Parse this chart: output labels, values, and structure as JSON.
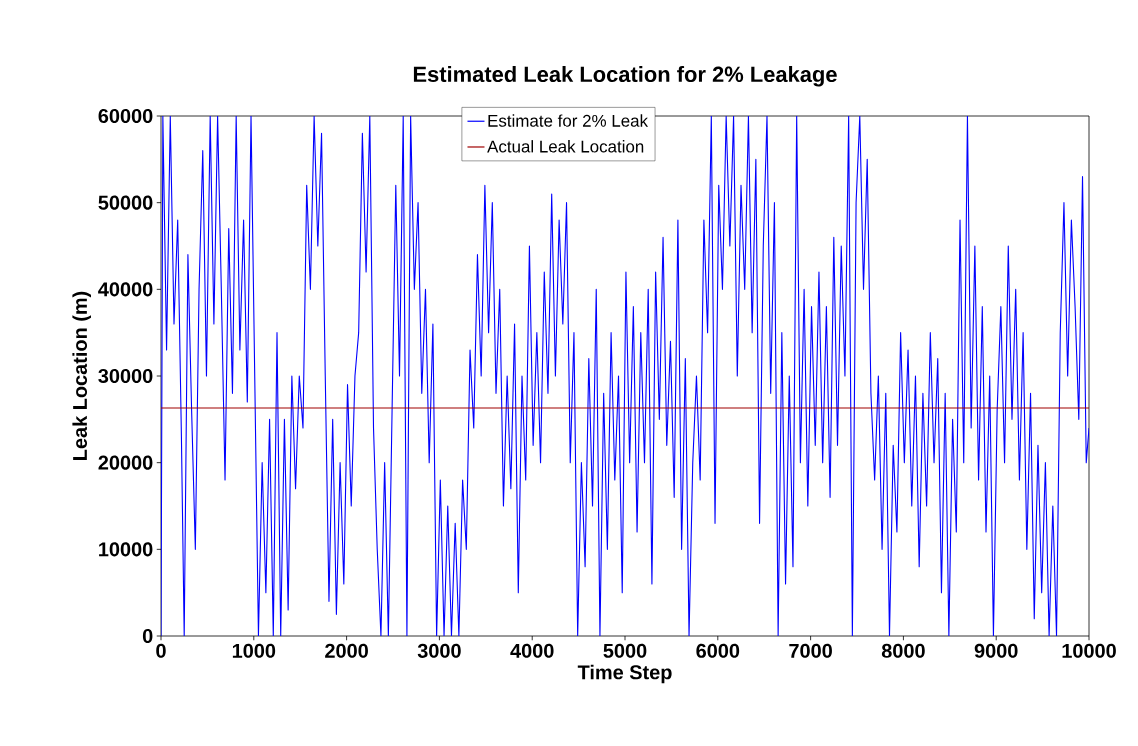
{
  "chart_data": {
    "type": "line",
    "title": "Estimated Leak Location for 2% Leakage",
    "xlabel": "Time Step",
    "ylabel": "Leak Location (m)",
    "xlim": [
      0,
      10000
    ],
    "ylim": [
      0,
      60000
    ],
    "xticks": [
      0,
      1000,
      2000,
      3000,
      4000,
      5000,
      6000,
      7000,
      8000,
      9000,
      10000
    ],
    "yticks": [
      0,
      10000,
      20000,
      30000,
      40000,
      50000,
      60000
    ],
    "legend": "top",
    "series": [
      {
        "name": "Estimate for 2% Leak",
        "color": "#0000ff",
        "x": [
          0,
          20,
          60,
          100,
          140,
          180,
          220,
          250,
          290,
          330,
          370,
          410,
          450,
          490,
          530,
          570,
          610,
          650,
          690,
          730,
          770,
          810,
          850,
          890,
          930,
          970,
          1010,
          1050,
          1090,
          1130,
          1170,
          1210,
          1250,
          1290,
          1330,
          1370,
          1410,
          1450,
          1490,
          1530,
          1570,
          1610,
          1650,
          1690,
          1730,
          1770,
          1810,
          1850,
          1890,
          1930,
          1970,
          2010,
          2050,
          2090,
          2130,
          2170,
          2210,
          2250,
          2290,
          2330,
          2370,
          2410,
          2450,
          2490,
          2530,
          2570,
          2610,
          2650,
          2690,
          2730,
          2770,
          2810,
          2850,
          2890,
          2930,
          2970,
          3010,
          3050,
          3090,
          3130,
          3170,
          3210,
          3250,
          3290,
          3330,
          3370,
          3410,
          3450,
          3490,
          3530,
          3570,
          3610,
          3650,
          3690,
          3730,
          3770,
          3810,
          3850,
          3890,
          3930,
          3970,
          4010,
          4050,
          4090,
          4130,
          4170,
          4210,
          4250,
          4290,
          4330,
          4370,
          4410,
          4450,
          4490,
          4530,
          4570,
          4610,
          4650,
          4690,
          4730,
          4770,
          4810,
          4850,
          4890,
          4930,
          4970,
          5010,
          5050,
          5090,
          5130,
          5170,
          5210,
          5250,
          5290,
          5330,
          5370,
          5410,
          5450,
          5490,
          5530,
          5570,
          5610,
          5650,
          5690,
          5730,
          5770,
          5810,
          5850,
          5890,
          5930,
          5970,
          6010,
          6050,
          6090,
          6130,
          6170,
          6210,
          6250,
          6290,
          6330,
          6370,
          6410,
          6450,
          6490,
          6530,
          6570,
          6610,
          6650,
          6690,
          6730,
          6770,
          6810,
          6850,
          6890,
          6930,
          6970,
          7010,
          7050,
          7090,
          7130,
          7170,
          7210,
          7250,
          7290,
          7330,
          7370,
          7410,
          7450,
          7490,
          7530,
          7570,
          7610,
          7650,
          7690,
          7730,
          7770,
          7810,
          7850,
          7890,
          7930,
          7970,
          8010,
          8050,
          8090,
          8130,
          8170,
          8210,
          8250,
          8290,
          8330,
          8370,
          8410,
          8450,
          8490,
          8530,
          8570,
          8610,
          8650,
          8690,
          8730,
          8770,
          8810,
          8850,
          8890,
          8930,
          8970,
          9010,
          9050,
          9090,
          9130,
          9170,
          9210,
          9250,
          9290,
          9330,
          9370,
          9410,
          9450,
          9490,
          9530,
          9570,
          9610,
          9650,
          9690,
          9730,
          9770,
          9810,
          9850,
          9890,
          9930,
          9970,
          10000
        ],
        "values": [
          0,
          60000,
          33000,
          60000,
          36000,
          48000,
          23000,
          0,
          44000,
          26000,
          10000,
          40000,
          56000,
          30000,
          60000,
          36000,
          60000,
          40000,
          18000,
          47000,
          28000,
          60000,
          33000,
          48000,
          27000,
          60000,
          30000,
          0,
          20000,
          5000,
          25000,
          0,
          35000,
          0,
          25000,
          3000,
          30000,
          17000,
          30000,
          24000,
          52000,
          40000,
          60000,
          45000,
          58000,
          30000,
          4000,
          25000,
          2500,
          20000,
          6000,
          29000,
          15000,
          30000,
          35000,
          58000,
          42000,
          60000,
          24000,
          10000,
          0,
          20000,
          0,
          26000,
          52000,
          30000,
          60000,
          0,
          60000,
          40000,
          50000,
          28000,
          40000,
          20000,
          36000,
          0,
          18000,
          0,
          15000,
          0,
          13000,
          0,
          18000,
          10000,
          33000,
          24000,
          44000,
          30000,
          52000,
          35000,
          50000,
          28000,
          40000,
          15000,
          30000,
          17000,
          36000,
          5000,
          30000,
          18000,
          45000,
          22000,
          35000,
          20000,
          42000,
          28000,
          51000,
          30000,
          48000,
          36000,
          50000,
          20000,
          35000,
          0,
          20000,
          8000,
          32000,
          15000,
          40000,
          0,
          28000,
          10000,
          35000,
          18000,
          30000,
          5000,
          42000,
          20000,
          38000,
          12000,
          35000,
          20000,
          40000,
          6000,
          42000,
          25000,
          46000,
          22000,
          34000,
          16000,
          48000,
          10000,
          32000,
          0,
          20000,
          30000,
          18000,
          48000,
          35000,
          60000,
          13000,
          52000,
          40000,
          60000,
          45000,
          60000,
          30000,
          52000,
          40000,
          60000,
          35000,
          55000,
          13000,
          45000,
          60000,
          28000,
          50000,
          0,
          35000,
          6000,
          30000,
          8000,
          60000,
          20000,
          40000,
          15000,
          38000,
          22000,
          42000,
          20000,
          38000,
          16000,
          46000,
          22000,
          45000,
          30000,
          60000,
          0,
          50000,
          60000,
          40000,
          55000,
          28000,
          18000,
          30000,
          10000,
          28000,
          0,
          22000,
          12000,
          35000,
          20000,
          33000,
          15000,
          30000,
          8000,
          28000,
          15000,
          35000,
          20000,
          32000,
          5000,
          28000,
          0,
          25000,
          12000,
          48000,
          20000,
          60000,
          24000,
          45000,
          18000,
          38000,
          12000,
          30000,
          0,
          26000,
          38000,
          20000,
          45000,
          25000,
          40000,
          18000,
          35000,
          10000,
          28000,
          2000,
          22000,
          5000,
          20000,
          0,
          15000,
          0,
          35000,
          50000,
          30000,
          48000,
          38000,
          25000,
          53000,
          20000,
          24000
        ]
      },
      {
        "name": "Actual Leak Location",
        "color": "#a00000",
        "x": [
          0,
          10000
        ],
        "values": [
          26300,
          26300
        ]
      }
    ]
  }
}
